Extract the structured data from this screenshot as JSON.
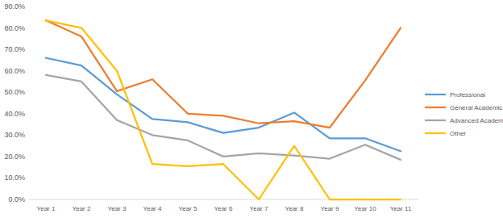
{
  "chart_data": {
    "type": "line",
    "categories": [
      "Year 1",
      "Year 2",
      "Year 3",
      "Year 4",
      "Year 5",
      "Year 6",
      "Year 7",
      "Year 8",
      "Year 9",
      "Year 10",
      "Year 11"
    ],
    "series": [
      {
        "name": "Professional",
        "color": "#5b9bd5",
        "values": [
          66,
          62.5,
          49,
          37.5,
          36,
          31,
          33.5,
          40.5,
          28.5,
          28.5,
          22.5
        ]
      },
      {
        "name": "General Academic",
        "color": "#ed7d31",
        "values": [
          83.5,
          76,
          50.5,
          56,
          40,
          39,
          35.5,
          36.5,
          33.5,
          55.5,
          80
        ]
      },
      {
        "name": "Advanced Academic",
        "color": "#a5a5a5",
        "values": [
          58,
          55,
          37,
          30,
          27.5,
          20,
          21.5,
          20.5,
          19,
          25.5,
          18.5
        ]
      },
      {
        "name": "Other",
        "color": "#ffc000",
        "values": [
          83.5,
          80,
          60,
          16.5,
          15.5,
          16.5,
          0,
          25,
          0,
          0,
          0
        ]
      }
    ],
    "ylim": [
      0,
      90
    ],
    "yticks": [
      {
        "value": 0,
        "label": "0.0%"
      },
      {
        "value": 10,
        "label": "10.0%"
      },
      {
        "value": 20,
        "label": "20.0%"
      },
      {
        "value": 30,
        "label": "30.0%"
      },
      {
        "value": 40,
        "label": "40.0%"
      },
      {
        "value": 50,
        "label": "50.0%"
      },
      {
        "value": 60,
        "label": "60.0%"
      },
      {
        "value": 70,
        "label": "70.0%"
      },
      {
        "value": 80,
        "label": "80.0%"
      },
      {
        "value": 90,
        "label": "90.0%"
      }
    ],
    "grid": false,
    "legend": "right"
  }
}
